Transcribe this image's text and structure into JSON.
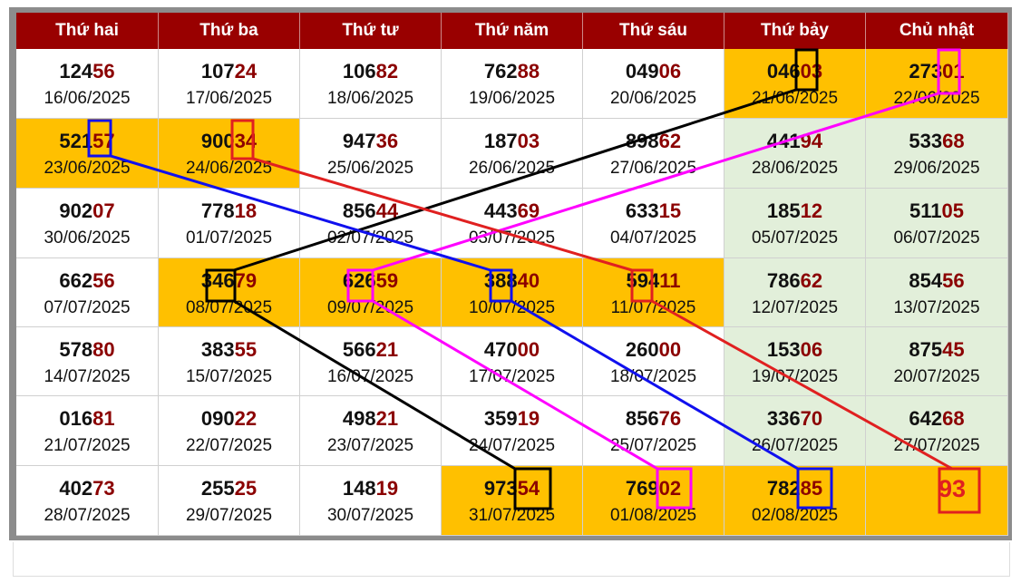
{
  "table": {
    "header": [
      "Thứ hai",
      "Thứ ba",
      "Thứ tư",
      "Thứ năm",
      "Thứ sáu",
      "Thứ bảy",
      "Chủ nhật"
    ],
    "rows": [
      [
        {
          "head": "124",
          "tail": "56",
          "date": "16/06/2025"
        },
        {
          "head": "107",
          "tail": "24",
          "date": "17/06/2025"
        },
        {
          "head": "106",
          "tail": "82",
          "date": "18/06/2025"
        },
        {
          "head": "762",
          "tail": "88",
          "date": "19/06/2025"
        },
        {
          "head": "049",
          "tail": "06",
          "date": "20/06/2025"
        },
        {
          "head": "046",
          "tail": "03",
          "date": "21/06/2025"
        },
        {
          "head": "273",
          "tail": "01",
          "date": "22/06/2025"
        }
      ],
      [
        {
          "head": "521",
          "tail": "57",
          "date": "23/06/2025"
        },
        {
          "head": "900",
          "tail": "34",
          "date": "24/06/2025"
        },
        {
          "head": "947",
          "tail": "36",
          "date": "25/06/2025"
        },
        {
          "head": "187",
          "tail": "03",
          "date": "26/06/2025"
        },
        {
          "head": "898",
          "tail": "62",
          "date": "27/06/2025"
        },
        {
          "head": "441",
          "tail": "94",
          "date": "28/06/2025"
        },
        {
          "head": "533",
          "tail": "68",
          "date": "29/06/2025"
        }
      ],
      [
        {
          "head": "902",
          "tail": "07",
          "date": "30/06/2025"
        },
        {
          "head": "778",
          "tail": "18",
          "date": "01/07/2025"
        },
        {
          "head": "856",
          "tail": "44",
          "date": "02/07/2025"
        },
        {
          "head": "443",
          "tail": "69",
          "date": "03/07/2025"
        },
        {
          "head": "633",
          "tail": "15",
          "date": "04/07/2025"
        },
        {
          "head": "185",
          "tail": "12",
          "date": "05/07/2025"
        },
        {
          "head": "511",
          "tail": "05",
          "date": "06/07/2025"
        }
      ],
      [
        {
          "head": "662",
          "tail": "56",
          "date": "07/07/2025"
        },
        {
          "head": "346",
          "tail": "79",
          "date": "08/07/2025"
        },
        {
          "head": "626",
          "tail": "59",
          "date": "09/07/2025"
        },
        {
          "head": "388",
          "tail": "40",
          "date": "10/07/2025"
        },
        {
          "head": "594",
          "tail": "11",
          "date": "11/07/2025"
        },
        {
          "head": "786",
          "tail": "62",
          "date": "12/07/2025"
        },
        {
          "head": "854",
          "tail": "56",
          "date": "13/07/2025"
        }
      ],
      [
        {
          "head": "578",
          "tail": "80",
          "date": "14/07/2025"
        },
        {
          "head": "383",
          "tail": "55",
          "date": "15/07/2025"
        },
        {
          "head": "566",
          "tail": "21",
          "date": "16/07/2025"
        },
        {
          "head": "470",
          "tail": "00",
          "date": "17/07/2025"
        },
        {
          "head": "260",
          "tail": "00",
          "date": "18/07/2025"
        },
        {
          "head": "153",
          "tail": "06",
          "date": "19/07/2025"
        },
        {
          "head": "875",
          "tail": "45",
          "date": "20/07/2025"
        }
      ],
      [
        {
          "head": "016",
          "tail": "81",
          "date": "21/07/2025"
        },
        {
          "head": "090",
          "tail": "22",
          "date": "22/07/2025"
        },
        {
          "head": "498",
          "tail": "21",
          "date": "23/07/2025"
        },
        {
          "head": "359",
          "tail": "19",
          "date": "24/07/2025"
        },
        {
          "head": "856",
          "tail": "76",
          "date": "25/07/2025"
        },
        {
          "head": "336",
          "tail": "70",
          "date": "26/07/2025"
        },
        {
          "head": "642",
          "tail": "68",
          "date": "27/07/2025"
        }
      ],
      [
        {
          "head": "402",
          "tail": "73",
          "date": "28/07/2025"
        },
        {
          "head": "255",
          "tail": "25",
          "date": "29/07/2025"
        },
        {
          "head": "148",
          "tail": "19",
          "date": "30/07/2025"
        },
        {
          "head": "973",
          "tail": "54",
          "date": "31/07/2025"
        },
        {
          "head": "769",
          "tail": "02",
          "date": "01/08/2025"
        },
        {
          "head": "782",
          "tail": "85",
          "date": "02/08/2025"
        },
        {
          "tail": "93"
        }
      ]
    ]
  }
}
